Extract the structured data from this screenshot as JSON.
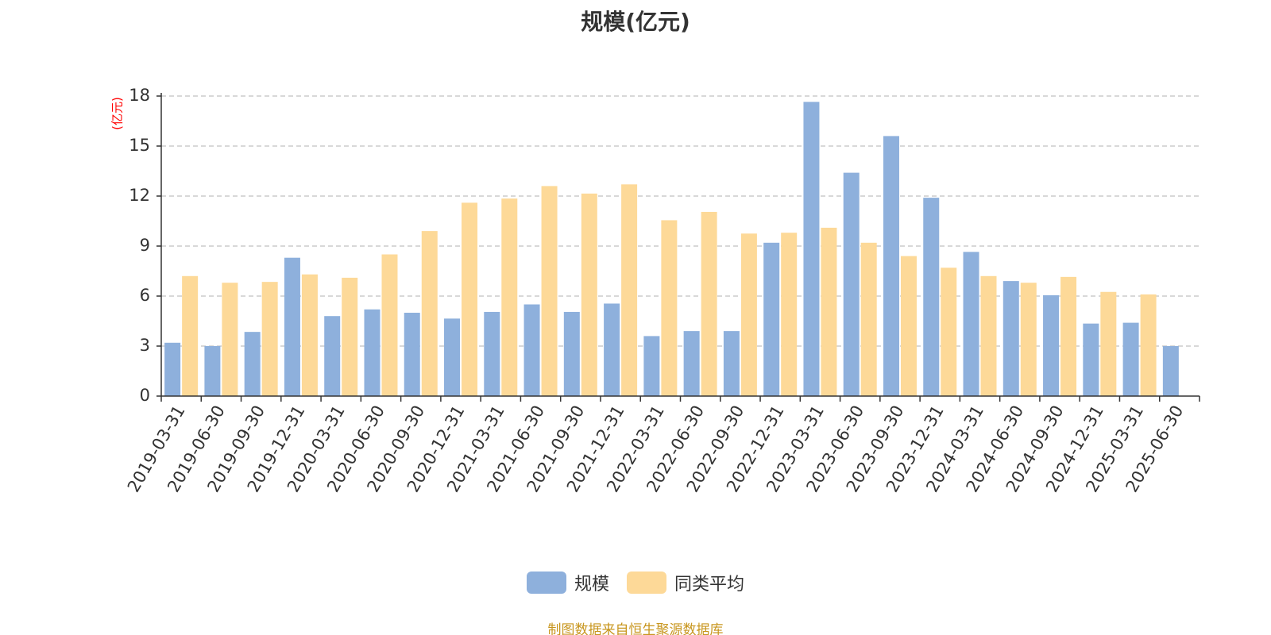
{
  "colors": {
    "series_1": "#8eb0dc",
    "series_2": "#fdd998",
    "unit_label": "#ff0000",
    "source_note": "#c8961e",
    "grid": "#cccccc",
    "axis": "#333333"
  },
  "source_note": "制图数据来自恒生聚源数据库",
  "chart_data": {
    "type": "bar",
    "title": "规模(亿元)",
    "ylabel": "(亿元)",
    "xlabel": "",
    "ylim": [
      0,
      18
    ],
    "yticks": [
      0,
      3,
      6,
      9,
      12,
      15,
      18
    ],
    "grid": true,
    "legend_position": "bottom",
    "categories": [
      "2019-03-31",
      "2019-06-30",
      "2019-09-30",
      "2019-12-31",
      "2020-03-31",
      "2020-06-30",
      "2020-09-30",
      "2020-12-31",
      "2021-03-31",
      "2021-06-30",
      "2021-09-30",
      "2021-12-31",
      "2022-03-31",
      "2022-06-30",
      "2022-09-30",
      "2022-12-31",
      "2023-03-31",
      "2023-06-30",
      "2023-09-30",
      "2023-12-31",
      "2024-03-31",
      "2024-06-30",
      "2024-09-30",
      "2024-12-31",
      "2025-03-31",
      "2025-06-30"
    ],
    "series": [
      {
        "name": "规模",
        "values": [
          3.2,
          3.0,
          3.85,
          8.3,
          4.8,
          5.2,
          5.0,
          4.65,
          5.05,
          5.5,
          5.05,
          5.55,
          3.6,
          3.9,
          3.9,
          9.2,
          17.65,
          13.4,
          15.6,
          11.9,
          8.65,
          6.9,
          6.05,
          4.35,
          4.4,
          3.0
        ]
      },
      {
        "name": "同类平均",
        "values": [
          7.2,
          6.8,
          6.85,
          7.3,
          7.1,
          8.5,
          9.9,
          11.6,
          11.85,
          12.6,
          12.15,
          12.7,
          10.55,
          11.05,
          9.75,
          9.8,
          10.1,
          9.2,
          8.4,
          7.7,
          7.2,
          6.8,
          7.15,
          6.25,
          6.1,
          null
        ]
      }
    ]
  }
}
